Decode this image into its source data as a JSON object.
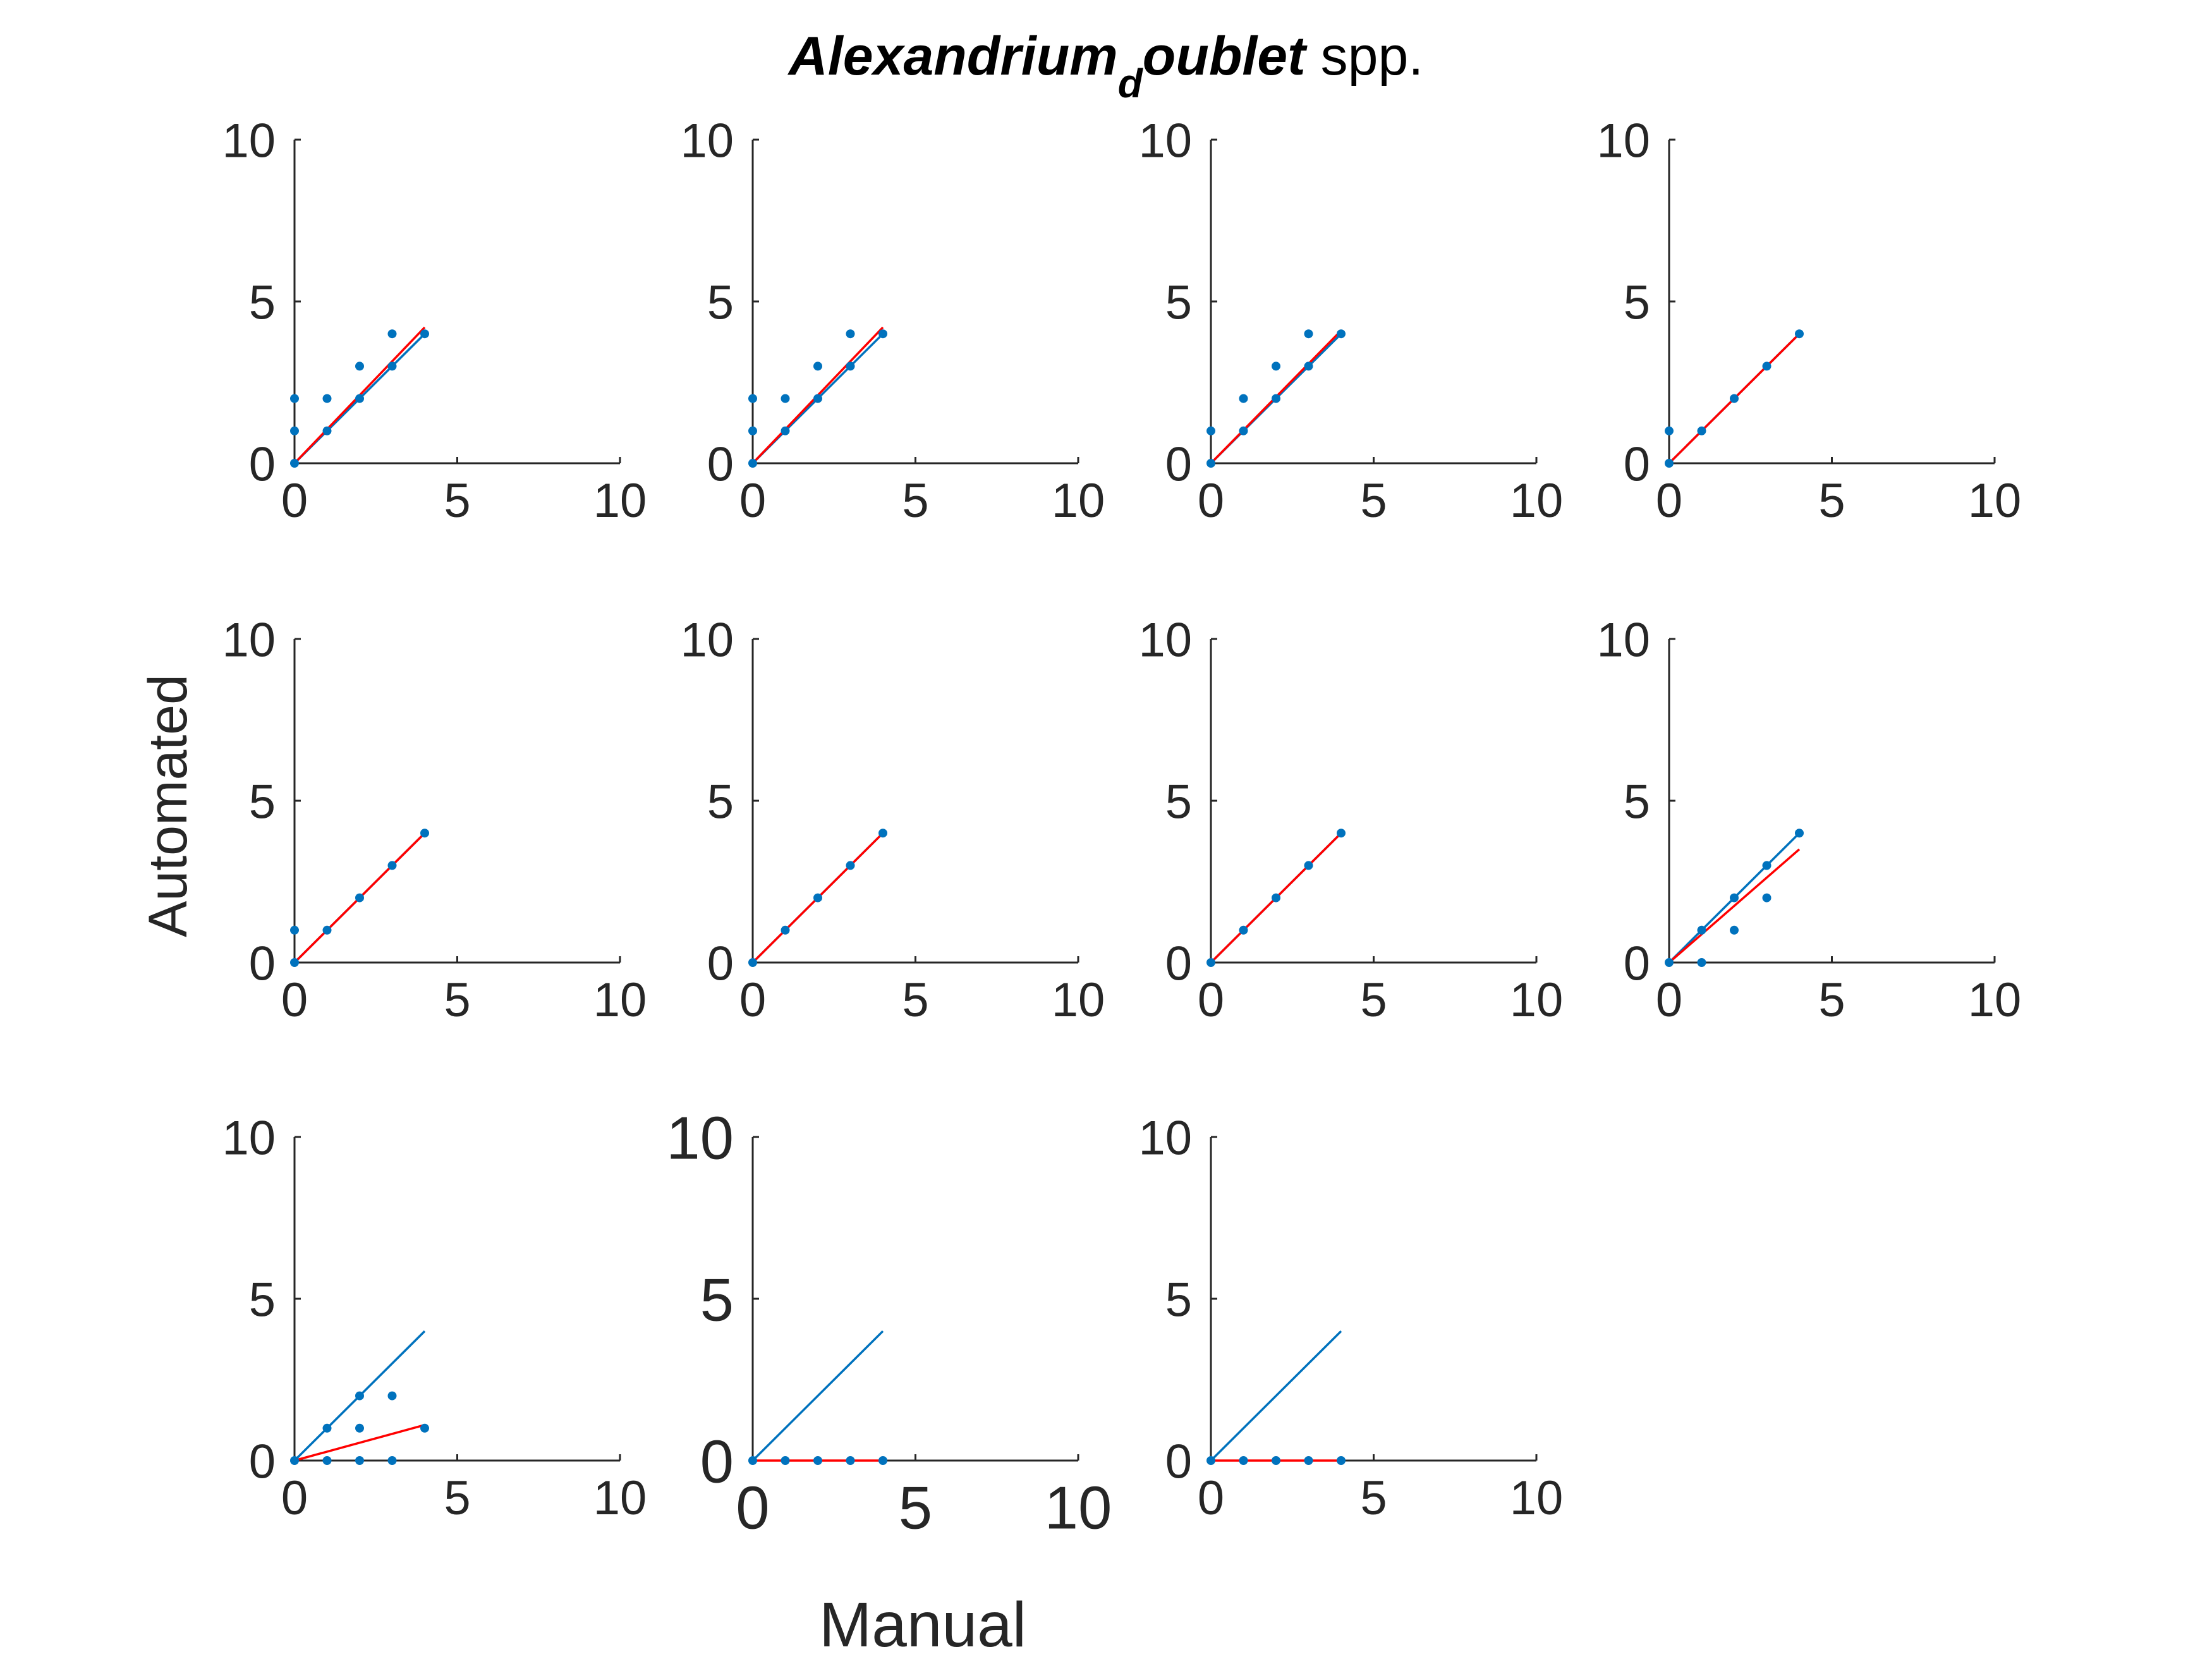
{
  "figure": {
    "title_part1": "Alexandrium",
    "title_subscript": "d",
    "title_part2": "oublet",
    "title_suffix": " spp.",
    "xlabel": "Manual",
    "ylabel": "Automated"
  },
  "colors": {
    "data": "#0072BD",
    "identity_line": "#0072BD",
    "fit_line": "#FF0000",
    "axis": "#262626"
  },
  "chart_data": [
    {
      "type": "scatter",
      "xlim": [
        0,
        10
      ],
      "ylim": [
        0,
        10
      ],
      "xticks": [
        "0",
        "5",
        "10"
      ],
      "yticks": [
        "0",
        "5",
        "10"
      ],
      "points": [
        [
          0,
          0
        ],
        [
          0,
          1
        ],
        [
          0,
          2
        ],
        [
          1,
          1
        ],
        [
          1,
          2
        ],
        [
          2,
          2
        ],
        [
          2,
          3
        ],
        [
          3,
          3
        ],
        [
          3,
          4
        ],
        [
          4,
          4
        ]
      ],
      "identity": [
        [
          0,
          0
        ],
        [
          4,
          4
        ]
      ],
      "fit": [
        [
          0,
          0
        ],
        [
          4,
          4.2
        ]
      ]
    },
    {
      "type": "scatter",
      "xlim": [
        0,
        10
      ],
      "ylim": [
        0,
        10
      ],
      "xticks": [
        "0",
        "5",
        "10"
      ],
      "yticks": [
        "0",
        "5",
        "10"
      ],
      "points": [
        [
          0,
          0
        ],
        [
          0,
          1
        ],
        [
          0,
          2
        ],
        [
          1,
          1
        ],
        [
          1,
          2
        ],
        [
          2,
          2
        ],
        [
          2,
          3
        ],
        [
          3,
          3
        ],
        [
          3,
          4
        ],
        [
          4,
          4
        ]
      ],
      "identity": [
        [
          0,
          0
        ],
        [
          4,
          4
        ]
      ],
      "fit": [
        [
          0,
          0
        ],
        [
          4,
          4.2
        ]
      ]
    },
    {
      "type": "scatter",
      "xlim": [
        0,
        10
      ],
      "ylim": [
        0,
        10
      ],
      "xticks": [
        "0",
        "5",
        "10"
      ],
      "yticks": [
        "0",
        "5",
        "10"
      ],
      "points": [
        [
          0,
          0
        ],
        [
          0,
          1
        ],
        [
          1,
          1
        ],
        [
          1,
          2
        ],
        [
          2,
          2
        ],
        [
          2,
          3
        ],
        [
          3,
          3
        ],
        [
          3,
          4
        ],
        [
          4,
          4
        ]
      ],
      "identity": [
        [
          0,
          0
        ],
        [
          4,
          4
        ]
      ],
      "fit": [
        [
          0,
          0
        ],
        [
          4,
          4.1
        ]
      ]
    },
    {
      "type": "scatter",
      "xlim": [
        0,
        10
      ],
      "ylim": [
        0,
        10
      ],
      "xticks": [
        "0",
        "5",
        "10"
      ],
      "yticks": [
        "0",
        "5",
        "10"
      ],
      "points": [
        [
          0,
          0
        ],
        [
          0,
          1
        ],
        [
          1,
          1
        ],
        [
          2,
          2
        ],
        [
          3,
          3
        ],
        [
          4,
          4
        ]
      ],
      "identity": [
        [
          0,
          0
        ],
        [
          4,
          4
        ]
      ],
      "fit": [
        [
          0,
          0
        ],
        [
          4,
          4
        ]
      ]
    },
    {
      "type": "scatter",
      "xlim": [
        0,
        10
      ],
      "ylim": [
        0,
        10
      ],
      "xticks": [
        "0",
        "5",
        "10"
      ],
      "yticks": [
        "0",
        "5",
        "10"
      ],
      "points": [
        [
          0,
          0
        ],
        [
          0,
          1
        ],
        [
          1,
          1
        ],
        [
          2,
          2
        ],
        [
          3,
          3
        ],
        [
          4,
          4
        ]
      ],
      "identity": [
        [
          0,
          0
        ],
        [
          4,
          4
        ]
      ],
      "fit": [
        [
          0,
          0
        ],
        [
          4,
          4
        ]
      ]
    },
    {
      "type": "scatter",
      "xlim": [
        0,
        10
      ],
      "ylim": [
        0,
        10
      ],
      "xticks": [
        "0",
        "5",
        "10"
      ],
      "yticks": [
        "0",
        "5",
        "10"
      ],
      "points": [
        [
          0,
          0
        ],
        [
          1,
          1
        ],
        [
          2,
          2
        ],
        [
          3,
          3
        ],
        [
          4,
          4
        ]
      ],
      "identity": [
        [
          0,
          0
        ],
        [
          4,
          4
        ]
      ],
      "fit": [
        [
          0,
          0
        ],
        [
          4,
          4
        ]
      ]
    },
    {
      "type": "scatter",
      "xlim": [
        0,
        10
      ],
      "ylim": [
        0,
        10
      ],
      "xticks": [
        "0",
        "5",
        "10"
      ],
      "yticks": [
        "0",
        "5",
        "10"
      ],
      "points": [
        [
          0,
          0
        ],
        [
          1,
          1
        ],
        [
          2,
          2
        ],
        [
          3,
          3
        ],
        [
          4,
          4
        ]
      ],
      "identity": [
        [
          0,
          0
        ],
        [
          4,
          4
        ]
      ],
      "fit": [
        [
          0,
          0
        ],
        [
          4,
          4
        ]
      ]
    },
    {
      "type": "scatter",
      "xlim": [
        0,
        10
      ],
      "ylim": [
        0,
        10
      ],
      "xticks": [
        "0",
        "5",
        "10"
      ],
      "yticks": [
        "0",
        "5",
        "10"
      ],
      "points": [
        [
          0,
          0
        ],
        [
          1,
          0
        ],
        [
          1,
          1
        ],
        [
          2,
          1
        ],
        [
          2,
          2
        ],
        [
          3,
          2
        ],
        [
          3,
          3
        ],
        [
          4,
          4
        ]
      ],
      "identity": [
        [
          0,
          0
        ],
        [
          4,
          4
        ]
      ],
      "fit": [
        [
          0,
          0
        ],
        [
          4,
          3.5
        ]
      ]
    },
    {
      "type": "scatter",
      "xlim": [
        0,
        10
      ],
      "ylim": [
        0,
        10
      ],
      "xticks": [
        "0",
        "5",
        "10"
      ],
      "yticks": [
        "0",
        "5",
        "10"
      ],
      "points": [
        [
          0,
          0
        ],
        [
          1,
          0
        ],
        [
          1,
          1
        ],
        [
          2,
          0
        ],
        [
          2,
          1
        ],
        [
          2,
          2
        ],
        [
          3,
          0
        ],
        [
          3,
          2
        ],
        [
          4,
          1
        ]
      ],
      "identity": [
        [
          0,
          0
        ],
        [
          4,
          4
        ]
      ],
      "fit": [
        [
          0,
          0
        ],
        [
          4,
          1.1
        ]
      ]
    },
    {
      "type": "scatter",
      "xlim": [
        0,
        10
      ],
      "ylim": [
        0,
        10
      ],
      "xticks": [
        "0",
        "5",
        "10"
      ],
      "yticks": [
        "0",
        "5",
        "10"
      ],
      "points": [
        [
          0,
          0
        ],
        [
          1,
          0
        ],
        [
          2,
          0
        ],
        [
          3,
          0
        ],
        [
          4,
          0
        ]
      ],
      "identity": [
        [
          0,
          0
        ],
        [
          4,
          4
        ]
      ],
      "fit": [
        [
          0,
          0
        ],
        [
          4,
          0
        ]
      ]
    },
    {
      "type": "scatter",
      "xlim": [
        0,
        10
      ],
      "ylim": [
        0,
        10
      ],
      "xticks": [
        "0",
        "5",
        "10"
      ],
      "yticks": [
        "0",
        "5",
        "10"
      ],
      "points": [
        [
          0,
          0
        ],
        [
          1,
          0
        ],
        [
          2,
          0
        ],
        [
          3,
          0
        ],
        [
          4,
          0
        ]
      ],
      "identity": [
        [
          0,
          0
        ],
        [
          4,
          4
        ]
      ],
      "fit": [
        [
          0,
          0
        ],
        [
          4,
          0
        ]
      ]
    }
  ]
}
